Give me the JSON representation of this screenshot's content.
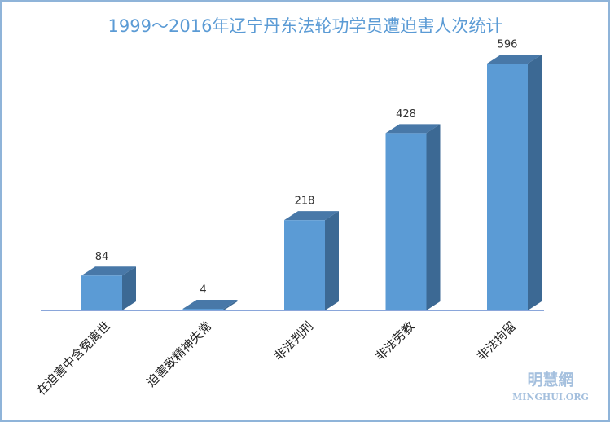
{
  "chart_data": {
    "type": "bar3d",
    "title": "1999～2016年辽宁丹东法轮功学员遭迫害人次统计",
    "categories": [
      "在迫害中含冤离世",
      "迫害致精神失常",
      "非法判刑",
      "非法劳教",
      "非法拘留"
    ],
    "values": [
      84,
      4,
      218,
      428,
      596
    ],
    "color": "#5b9bd5"
  },
  "watermark": {
    "name": "明慧網",
    "site": "MINGHUI.ORG"
  }
}
